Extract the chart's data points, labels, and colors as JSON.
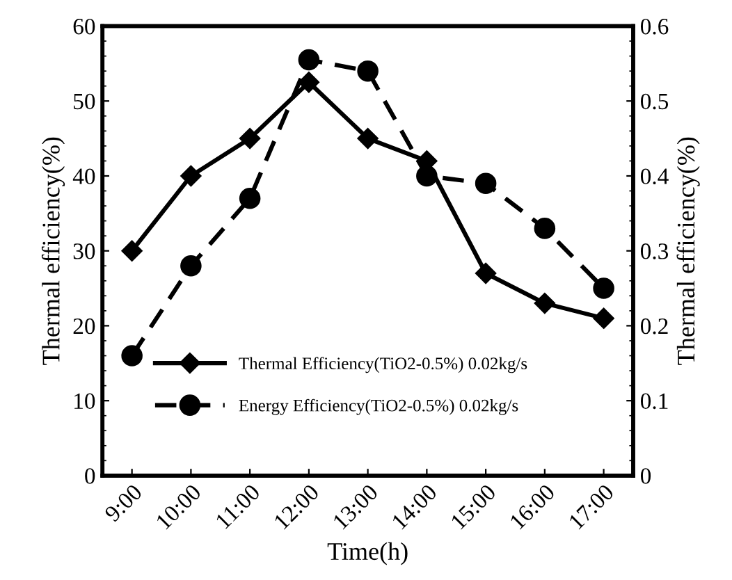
{
  "chart_data": {
    "type": "line",
    "xlabel": "Time(h)",
    "ylabel": "Thermal efficiency(%)",
    "y2label": "Thermal efficiency(%)",
    "categories": [
      "9:00",
      "10:00",
      "11:00",
      "12:00",
      "13:00",
      "14:00",
      "15:00",
      "16:00",
      "17:00"
    ],
    "series": [
      {
        "name": "Thermal Efficiency(TiO2-0.5%) 0.02kg/s",
        "color": "#000000",
        "marker": "diamond",
        "line_style": "solid",
        "values": [
          30,
          40,
          45,
          52.5,
          45,
          42,
          27,
          23,
          21
        ]
      },
      {
        "name": "Energy Efficiency(TiO2-0.5%) 0.02kg/s",
        "color": "#000000",
        "marker": "circle",
        "line_style": "dashed",
        "axis": "y2",
        "values": [
          0.16,
          0.28,
          0.37,
          0.555,
          0.54,
          0.4,
          0.39,
          0.33,
          0.25
        ]
      }
    ],
    "ylim": [
      0,
      60
    ],
    "yticks": [
      0,
      10,
      20,
      30,
      40,
      50,
      60
    ],
    "y2lim": [
      0,
      0.6
    ],
    "y2ticks": [
      0,
      0.1,
      0.2,
      0.3,
      0.4,
      0.5,
      0.6
    ],
    "grid": false,
    "legend": "bottom"
  }
}
